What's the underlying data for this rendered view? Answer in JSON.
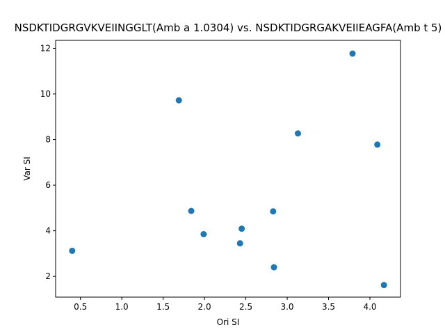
{
  "chart_data": {
    "type": "scatter",
    "title": "NSDKTIDGRGVKVEIINGGLT(Amb a 1.0304) vs. NSDKTIDGRGAKVEIIEAGFA(Amb t 5)",
    "xlabel": "Ori SI",
    "ylabel": "Var SI",
    "xlim": [
      0.2,
      4.37
    ],
    "ylim": [
      1.09,
      12.35
    ],
    "xticks": [
      0.5,
      1.0,
      1.5,
      2.0,
      2.5,
      3.0,
      3.5,
      4.0
    ],
    "xtick_labels": [
      "0.5",
      "1.0",
      "1.5",
      "2.0",
      "2.5",
      "3.0",
      "3.5",
      "4.0"
    ],
    "yticks": [
      2,
      4,
      6,
      8,
      10,
      12
    ],
    "ytick_labels": [
      "2",
      "4",
      "6",
      "8",
      "10",
      "12"
    ],
    "grid": false,
    "color": "#1f77b4",
    "points": [
      {
        "x": 0.4,
        "y": 3.12
      },
      {
        "x": 1.69,
        "y": 9.72
      },
      {
        "x": 1.84,
        "y": 4.87
      },
      {
        "x": 1.99,
        "y": 3.85
      },
      {
        "x": 2.43,
        "y": 3.45
      },
      {
        "x": 2.45,
        "y": 4.09
      },
      {
        "x": 2.83,
        "y": 4.85
      },
      {
        "x": 2.84,
        "y": 2.4
      },
      {
        "x": 3.13,
        "y": 8.27
      },
      {
        "x": 3.79,
        "y": 11.77
      },
      {
        "x": 4.09,
        "y": 7.78
      },
      {
        "x": 4.17,
        "y": 1.62
      }
    ]
  }
}
